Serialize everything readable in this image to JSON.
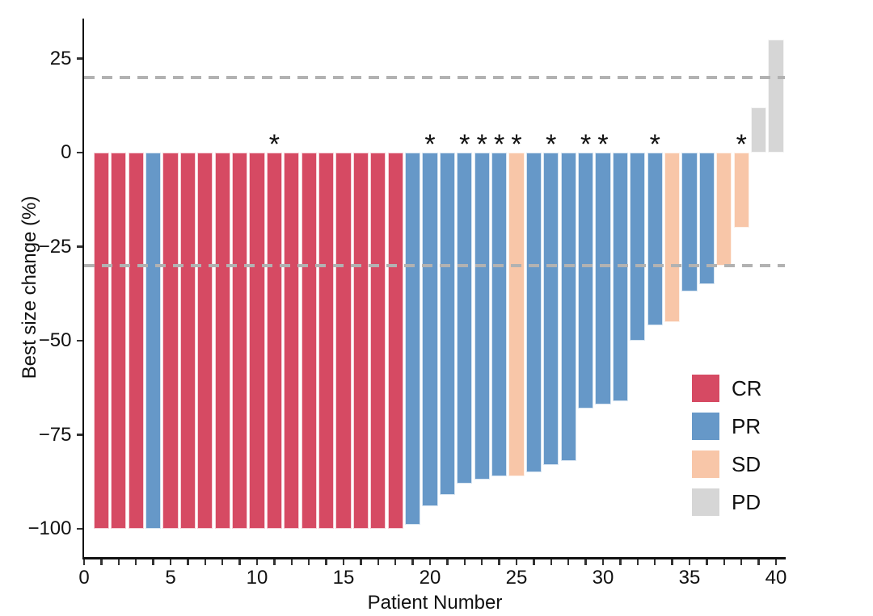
{
  "chart_data": {
    "type": "bar",
    "subtype": "waterfall",
    "title": "",
    "xlabel": "Patient Number",
    "ylabel": "Best size change (%)",
    "xlim": [
      0,
      40.6
    ],
    "ylim": [
      -107,
      36
    ],
    "grid": false,
    "x_minor_tick_every": 1,
    "xticks": [
      {
        "value": 0,
        "label": "0"
      },
      {
        "value": 5,
        "label": "5"
      },
      {
        "value": 10,
        "label": "10"
      },
      {
        "value": 15,
        "label": "15"
      },
      {
        "value": 20,
        "label": "20"
      },
      {
        "value": 25,
        "label": "25"
      },
      {
        "value": 30,
        "label": "30"
      },
      {
        "value": 35,
        "label": "35"
      },
      {
        "value": 40,
        "label": "40"
      }
    ],
    "yticks": [
      {
        "value": 25,
        "label": "25"
      },
      {
        "value": 0,
        "label": "0"
      },
      {
        "value": -25,
        "label": "−25"
      },
      {
        "value": -50,
        "label": "−50"
      },
      {
        "value": -75,
        "label": "−75"
      },
      {
        "value": -100,
        "label": "−100"
      }
    ],
    "thresholds": [
      {
        "value": 20,
        "style": "dashed",
        "color": "#b2b2b2"
      },
      {
        "value": -30,
        "style": "dashed",
        "color": "#b2b2b2"
      }
    ],
    "group_colors": {
      "CR": "#d64a63",
      "PR": "#6698c8",
      "SD": "#f8c6a8",
      "PD": "#d6d6d6"
    },
    "legend": {
      "position": "lower-right",
      "entries": [
        {
          "label": "CR",
          "color": "#d64a63"
        },
        {
          "label": "PR",
          "color": "#6698c8"
        },
        {
          "label": "SD",
          "color": "#f8c6a8"
        },
        {
          "label": "PD",
          "color": "#d6d6d6"
        }
      ]
    },
    "star_annotation_symbol": "*",
    "bars": [
      {
        "patient": 1,
        "value": -100,
        "group": "CR",
        "star": false
      },
      {
        "patient": 2,
        "value": -100,
        "group": "CR",
        "star": false
      },
      {
        "patient": 3,
        "value": -100,
        "group": "CR",
        "star": false
      },
      {
        "patient": 4,
        "value": -100,
        "group": "PR",
        "star": false
      },
      {
        "patient": 5,
        "value": -100,
        "group": "CR",
        "star": false
      },
      {
        "patient": 6,
        "value": -100,
        "group": "CR",
        "star": false
      },
      {
        "patient": 7,
        "value": -100,
        "group": "CR",
        "star": false
      },
      {
        "patient": 8,
        "value": -100,
        "group": "CR",
        "star": false
      },
      {
        "patient": 9,
        "value": -100,
        "group": "CR",
        "star": false
      },
      {
        "patient": 10,
        "value": -100,
        "group": "CR",
        "star": false
      },
      {
        "patient": 11,
        "value": -100,
        "group": "CR",
        "star": true
      },
      {
        "patient": 12,
        "value": -100,
        "group": "CR",
        "star": false
      },
      {
        "patient": 13,
        "value": -100,
        "group": "CR",
        "star": false
      },
      {
        "patient": 14,
        "value": -100,
        "group": "CR",
        "star": false
      },
      {
        "patient": 15,
        "value": -100,
        "group": "CR",
        "star": false
      },
      {
        "patient": 16,
        "value": -100,
        "group": "CR",
        "star": false
      },
      {
        "patient": 17,
        "value": -100,
        "group": "CR",
        "star": false
      },
      {
        "patient": 18,
        "value": -100,
        "group": "CR",
        "star": false
      },
      {
        "patient": 19,
        "value": -99,
        "group": "PR",
        "star": false
      },
      {
        "patient": 20,
        "value": -94,
        "group": "PR",
        "star": true
      },
      {
        "patient": 21,
        "value": -91,
        "group": "PR",
        "star": false
      },
      {
        "patient": 22,
        "value": -88,
        "group": "PR",
        "star": true
      },
      {
        "patient": 23,
        "value": -87,
        "group": "PR",
        "star": true
      },
      {
        "patient": 24,
        "value": -86,
        "group": "PR",
        "star": true
      },
      {
        "patient": 25,
        "value": -86,
        "group": "SD",
        "star": true
      },
      {
        "patient": 26,
        "value": -85,
        "group": "PR",
        "star": false
      },
      {
        "patient": 27,
        "value": -83,
        "group": "PR",
        "star": true
      },
      {
        "patient": 28,
        "value": -82,
        "group": "PR",
        "star": false
      },
      {
        "patient": 29,
        "value": -68,
        "group": "PR",
        "star": true
      },
      {
        "patient": 30,
        "value": -67,
        "group": "PR",
        "star": true
      },
      {
        "patient": 31,
        "value": -66,
        "group": "PR",
        "star": false
      },
      {
        "patient": 32,
        "value": -50,
        "group": "PR",
        "star": false
      },
      {
        "patient": 33,
        "value": -46,
        "group": "PR",
        "star": true
      },
      {
        "patient": 34,
        "value": -45,
        "group": "SD",
        "star": false
      },
      {
        "patient": 35,
        "value": -37,
        "group": "PR",
        "star": false
      },
      {
        "patient": 36,
        "value": -35,
        "group": "PR",
        "star": false
      },
      {
        "patient": 37,
        "value": -30,
        "group": "SD",
        "star": false
      },
      {
        "patient": 38,
        "value": -20,
        "group": "SD",
        "star": true
      },
      {
        "patient": 39,
        "value": 12,
        "group": "PD",
        "star": false
      },
      {
        "patient": 40,
        "value": 30,
        "group": "PD",
        "star": false
      }
    ]
  }
}
